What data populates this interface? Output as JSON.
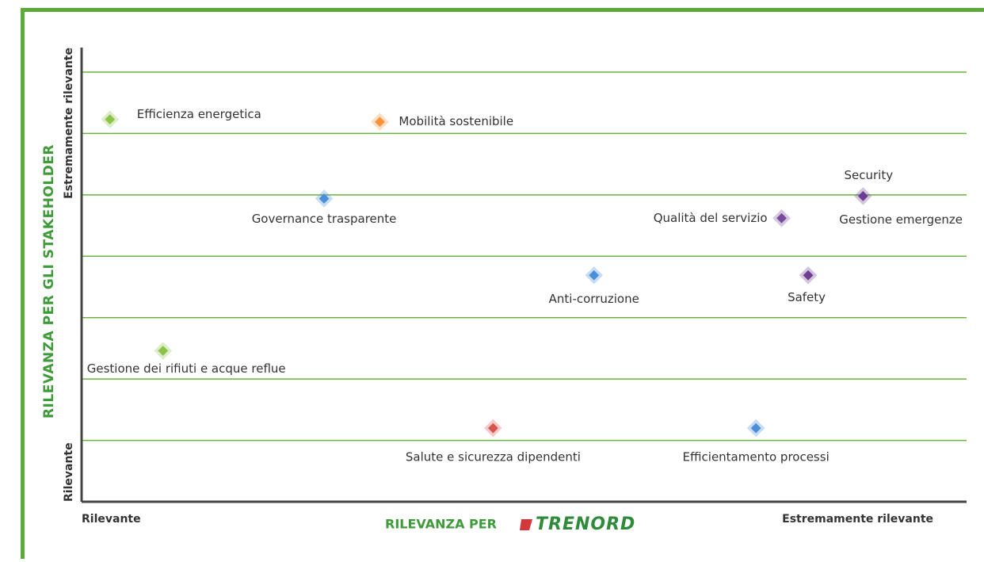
{
  "chart_data": {
    "type": "scatter",
    "xlabel": "RILEVANZA PER",
    "xlabel_logo": "TRENORD",
    "ylabel": "RILEVANZA PER GLI  STAKEHOLDER",
    "xlim": [
      0,
      10
    ],
    "ylim": [
      0,
      7.4
    ],
    "xticks": [
      {
        "value": 0,
        "label": "Rilevante"
      },
      {
        "value": 10,
        "label": "Estremamente rilevante"
      }
    ],
    "yticks": [
      {
        "value": 0,
        "label": "Rilevante"
      },
      {
        "value": 7.4,
        "label": "Estremamente rilevante"
      }
    ],
    "grid_lines": [
      1,
      2,
      3,
      4,
      5,
      6,
      7
    ],
    "grid": true,
    "points": [
      {
        "name": "Efficienza energetica",
        "x": 0.32,
        "y": 6.23,
        "color": "#8cc34a"
      },
      {
        "name": "Mobilità sostenibile",
        "x": 3.37,
        "y": 6.19,
        "color": "#f5943a"
      },
      {
        "name": "Governance trasparente",
        "x": 2.74,
        "y": 4.94,
        "color": "#4a8fd8"
      },
      {
        "name": "Security",
        "x": 8.83,
        "y": 4.98,
        "color": "#6d3d91"
      },
      {
        "name": "Gestione emergenze",
        "x": 8.83,
        "y": 4.98,
        "color": "#6d3d91"
      },
      {
        "name": "Qualità del servizio",
        "x": 7.91,
        "y": 4.62,
        "color": "#7a4a9c"
      },
      {
        "name": "Anti-corruzione",
        "x": 5.79,
        "y": 3.69,
        "color": "#4a8fd8"
      },
      {
        "name": "Safety",
        "x": 8.21,
        "y": 3.69,
        "color": "#6d3d91"
      },
      {
        "name": "Gestione dei rifiuti e acque reflue",
        "x": 0.92,
        "y": 2.46,
        "color": "#8cc34a"
      },
      {
        "name": "Salute e sicurezza dipendenti",
        "x": 4.65,
        "y": 1.2,
        "color": "#d9534f"
      },
      {
        "name": "Efficientamento processi",
        "x": 7.62,
        "y": 1.2,
        "color": "#4a8fd8"
      }
    ]
  }
}
